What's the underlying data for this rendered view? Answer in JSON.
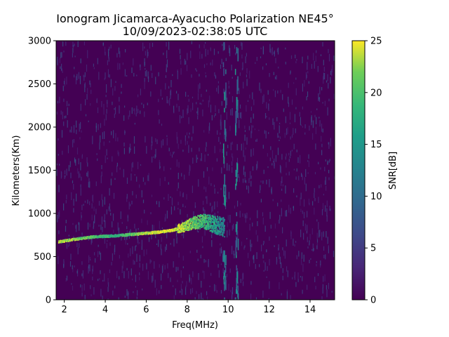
{
  "chart_data": {
    "type": "heatmap",
    "title_line1": "Ionogram Jicamarca-Ayacucho Polarization NE45°",
    "title_line2": "10/09/2023-02:38:05 UTC",
    "xlabel": "Freq(MHz)",
    "ylabel": "Kilometers(Km)",
    "xlim": [
      1.6,
      15.2
    ],
    "ylim": [
      0,
      3000
    ],
    "x_ticks": [
      "2",
      "4",
      "6",
      "8",
      "10",
      "12",
      "14"
    ],
    "x_tick_values": [
      2,
      4,
      6,
      8,
      10,
      12,
      14
    ],
    "y_ticks": [
      "0",
      "500",
      "1000",
      "1500",
      "2000",
      "2500",
      "3000"
    ],
    "y_tick_values": [
      0,
      500,
      1000,
      1500,
      2000,
      2500,
      3000
    ],
    "colorbar": {
      "label": "SNR[dB]",
      "range": [
        0,
        25
      ],
      "ticks": [
        "0",
        "5",
        "10",
        "15",
        "20",
        "25"
      ],
      "tick_values": [
        0,
        5,
        10,
        15,
        20,
        25
      ],
      "colormap": "viridis"
    },
    "trace": {
      "description_points_freq_mhz": [
        1.7,
        2.5,
        3.5,
        4.5,
        5.5,
        6.5,
        7.2,
        7.8,
        8.3,
        8.8,
        9.3,
        9.8
      ],
      "height_km": [
        680,
        710,
        740,
        750,
        770,
        790,
        810,
        850,
        900,
        920,
        880,
        850
      ],
      "snr_db": [
        24,
        22,
        20,
        18,
        22,
        24,
        25,
        23,
        21,
        19,
        16,
        12
      ]
    },
    "vertical_stripe_freq_mhz": [
      9.8,
      10.4
    ],
    "grid": false
  }
}
